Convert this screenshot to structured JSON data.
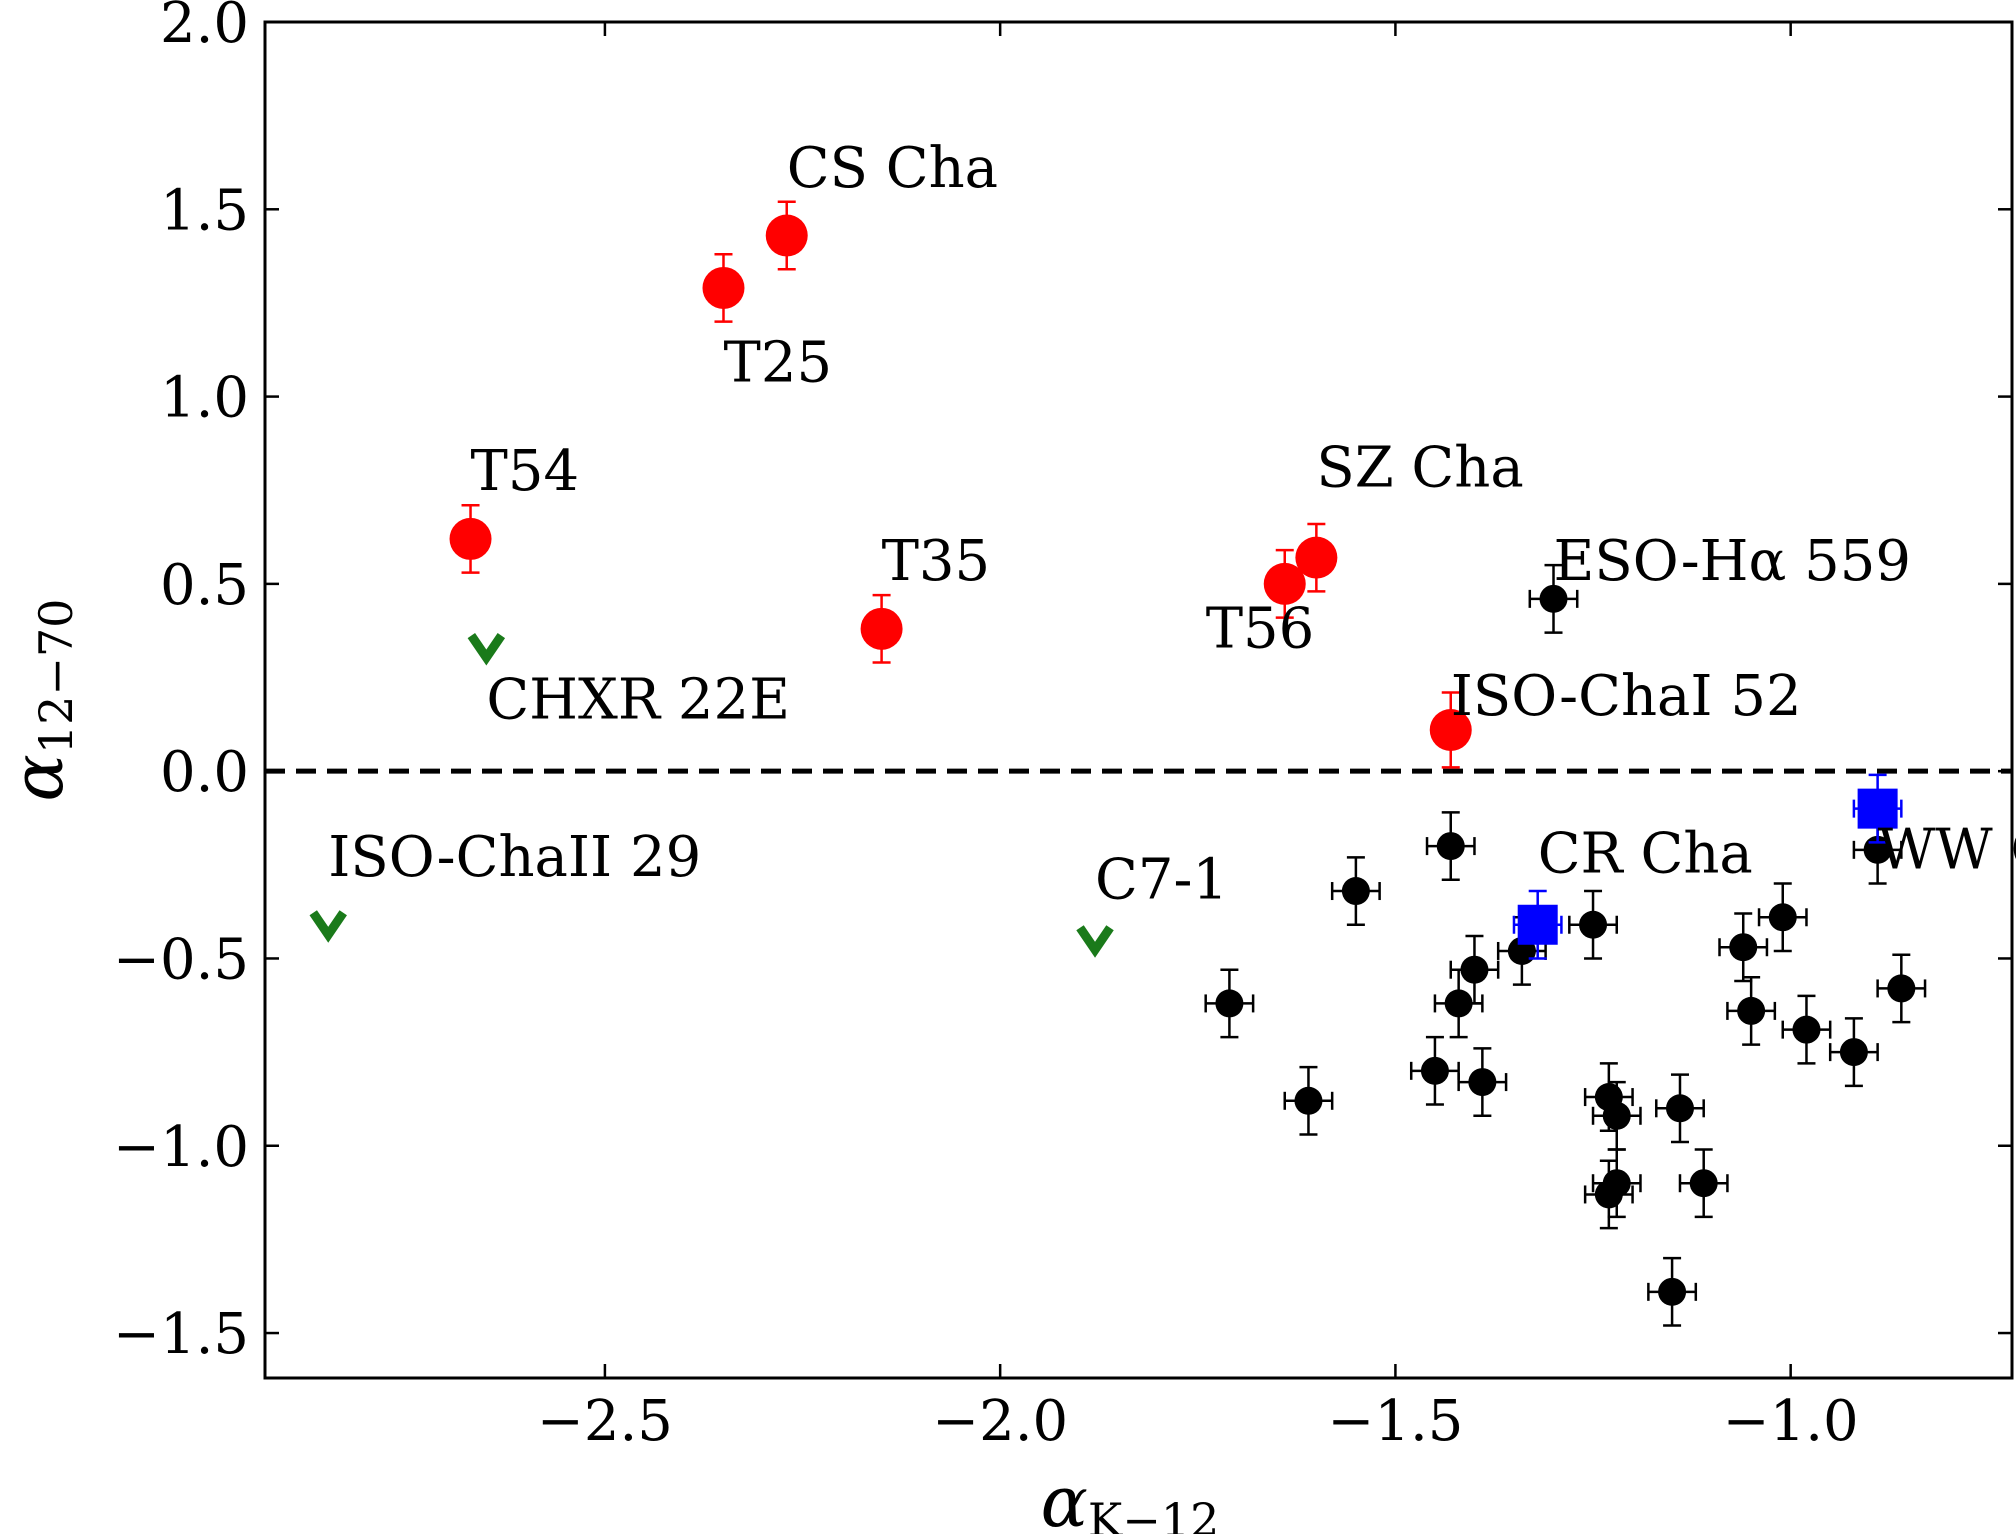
{
  "chart_data": {
    "type": "scatter",
    "title": "",
    "xlabel": "α",
    "xlabel_sub": "K−12",
    "ylabel": "α",
    "ylabel_sub": "12−70",
    "xlim": [
      -2.93,
      -0.72
    ],
    "ylim": [
      -1.62,
      2.0
    ],
    "x_ticks": [
      -2.5,
      -2.0,
      -1.5,
      -1.0
    ],
    "x_tick_labels": [
      "−2.5",
      "−2.0",
      "−1.5",
      "−1.0"
    ],
    "y_ticks": [
      2.0,
      1.5,
      1.0,
      0.5,
      0.0,
      -0.5,
      -1.0,
      -1.5
    ],
    "y_tick_labels": [
      "2.0",
      "1.5",
      "1.0",
      "0.5",
      "0.0",
      "−0.5",
      "−1.0",
      "−1.5"
    ],
    "grid": false,
    "reference_line": {
      "y": 0.0,
      "style": "dashed",
      "color": "#000000"
    },
    "colors": {
      "red": "#ff0000",
      "black": "#000000",
      "blue": "#0000ff",
      "green": "#1a7a1a"
    },
    "series": [
      {
        "marker": "circle",
        "color": "#ff0000",
        "points": [
          {
            "x": -2.27,
            "y": 1.43,
            "yerr": 0.09
          },
          {
            "x": -2.35,
            "y": 1.29,
            "yerr": 0.09
          },
          {
            "x": -2.67,
            "y": 0.62,
            "yerr": 0.09
          },
          {
            "x": -2.15,
            "y": 0.38,
            "yerr": 0.09
          },
          {
            "x": -1.64,
            "y": 0.5,
            "yerr": 0.09
          },
          {
            "x": -1.6,
            "y": 0.57,
            "yerr": 0.09
          },
          {
            "x": -1.43,
            "y": 0.11,
            "yerr": 0.1
          }
        ]
      },
      {
        "marker": "circle",
        "color": "#000000",
        "points": [
          {
            "x": -1.3,
            "y": 0.46,
            "xerr": 0.03,
            "yerr": 0.09
          },
          {
            "x": -1.43,
            "y": -0.2,
            "xerr": 0.03,
            "yerr": 0.09
          },
          {
            "x": -1.55,
            "y": -0.32,
            "xerr": 0.03,
            "yerr": 0.09
          },
          {
            "x": -0.89,
            "y": -0.21,
            "xerr": 0.03,
            "yerr": 0.09
          },
          {
            "x": -1.25,
            "y": -0.41,
            "xerr": 0.03,
            "yerr": 0.09
          },
          {
            "x": -1.34,
            "y": -0.48,
            "xerr": 0.03,
            "yerr": 0.09
          },
          {
            "x": -1.4,
            "y": -0.53,
            "xerr": 0.03,
            "yerr": 0.09
          },
          {
            "x": -1.42,
            "y": -0.62,
            "xerr": 0.03,
            "yerr": 0.09
          },
          {
            "x": -1.71,
            "y": -0.62,
            "xerr": 0.03,
            "yerr": 0.09
          },
          {
            "x": -1.06,
            "y": -0.47,
            "xerr": 0.03,
            "yerr": 0.09
          },
          {
            "x": -1.01,
            "y": -0.39,
            "xerr": 0.03,
            "yerr": 0.09
          },
          {
            "x": -1.05,
            "y": -0.64,
            "xerr": 0.03,
            "yerr": 0.09
          },
          {
            "x": -0.98,
            "y": -0.69,
            "xerr": 0.03,
            "yerr": 0.09
          },
          {
            "x": -0.86,
            "y": -0.58,
            "xerr": 0.03,
            "yerr": 0.09
          },
          {
            "x": -0.92,
            "y": -0.75,
            "xerr": 0.03,
            "yerr": 0.09
          },
          {
            "x": -1.45,
            "y": -0.8,
            "xerr": 0.03,
            "yerr": 0.09
          },
          {
            "x": -1.39,
            "y": -0.83,
            "xerr": 0.03,
            "yerr": 0.09
          },
          {
            "x": -1.61,
            "y": -0.88,
            "xerr": 0.03,
            "yerr": 0.09
          },
          {
            "x": -1.23,
            "y": -0.87,
            "xerr": 0.03,
            "yerr": 0.09
          },
          {
            "x": -1.22,
            "y": -0.92,
            "xerr": 0.03,
            "yerr": 0.09
          },
          {
            "x": -1.14,
            "y": -0.9,
            "xerr": 0.03,
            "yerr": 0.09
          },
          {
            "x": -1.23,
            "y": -1.13,
            "xerr": 0.03,
            "yerr": 0.09
          },
          {
            "x": -1.22,
            "y": -1.1,
            "xerr": 0.03,
            "yerr": 0.09
          },
          {
            "x": -1.11,
            "y": -1.1,
            "xerr": 0.03,
            "yerr": 0.09
          },
          {
            "x": -1.15,
            "y": -1.39,
            "xerr": 0.03,
            "yerr": 0.09
          }
        ]
      },
      {
        "marker": "square",
        "color": "#0000ff",
        "points": [
          {
            "x": -1.32,
            "y": -0.41,
            "xerr": 0.03,
            "yerr": 0.09
          },
          {
            "x": -0.89,
            "y": -0.1,
            "xerr": 0.03,
            "yerr": 0.09
          }
        ]
      },
      {
        "marker": "upper-limit",
        "color": "#1a7a1a",
        "points": [
          {
            "x": -2.65,
            "y": 0.33
          },
          {
            "x": -2.85,
            "y": -0.41
          },
          {
            "x": -1.88,
            "y": -0.45
          }
        ]
      }
    ],
    "annotations": [
      {
        "text": "CS Cha",
        "x": -2.27,
        "y": 1.56
      },
      {
        "text": "T25",
        "x": -2.35,
        "y": 1.04
      },
      {
        "text": "T54",
        "x": -2.67,
        "y": 0.75
      },
      {
        "text": "T35",
        "x": -2.15,
        "y": 0.51
      },
      {
        "text": "SZ Cha",
        "x": -1.6,
        "y": 0.76
      },
      {
        "text": "T56",
        "x": -1.74,
        "y": 0.33
      },
      {
        "text": "ESO-Hα 559",
        "x": -1.3,
        "y": 0.51
      },
      {
        "text": "CHXR 22E",
        "x": -2.65,
        "y": 0.14
      },
      {
        "text": "ISO-ChaI 52",
        "x": -1.43,
        "y": 0.15
      },
      {
        "text": "ISO-ChaII 29",
        "x": -2.85,
        "y": -0.28
      },
      {
        "text": "C7-1",
        "x": -1.88,
        "y": -0.34
      },
      {
        "text": "CR Cha",
        "x": -1.32,
        "y": -0.27
      },
      {
        "text": "WW Cha",
        "x": -0.89,
        "y": -0.26
      }
    ]
  }
}
